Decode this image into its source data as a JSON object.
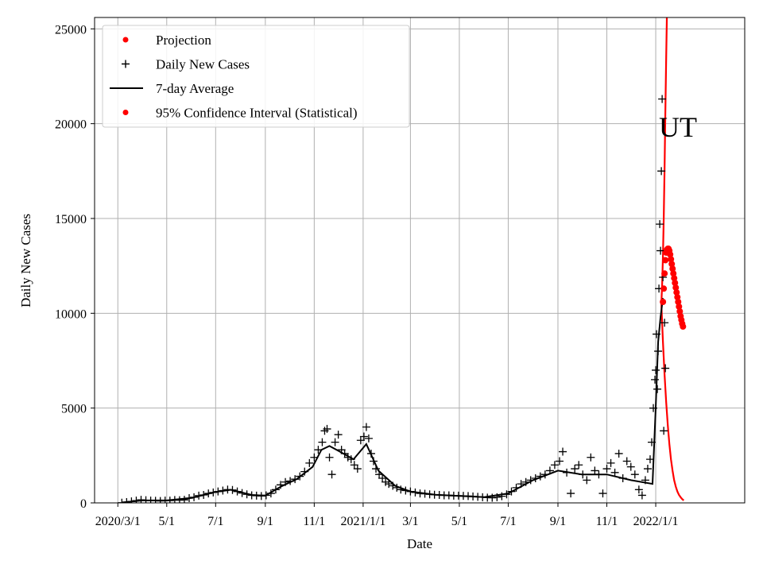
{
  "chart_data": {
    "type": "line",
    "title": "",
    "xlabel": "Date",
    "ylabel": "Daily New Cases",
    "annotation": "UT",
    "grid": true,
    "legend_position": "top-left",
    "xlim": [
      "2020-02-01",
      "2022-04-22"
    ],
    "ylim": [
      0,
      25600
    ],
    "x_ticks": [
      {
        "date": "2020-03-01",
        "label": "2020/3/1"
      },
      {
        "date": "2020-05-01",
        "label": "5/1"
      },
      {
        "date": "2020-07-01",
        "label": "7/1"
      },
      {
        "date": "2020-09-01",
        "label": "9/1"
      },
      {
        "date": "2020-11-01",
        "label": "11/1"
      },
      {
        "date": "2021-01-01",
        "label": "2021/1/1"
      },
      {
        "date": "2021-03-01",
        "label": "3/1"
      },
      {
        "date": "2021-05-01",
        "label": "5/1"
      },
      {
        "date": "2021-07-01",
        "label": "7/1"
      },
      {
        "date": "2021-09-01",
        "label": "9/1"
      },
      {
        "date": "2021-11-01",
        "label": "11/1"
      },
      {
        "date": "2022-01-01",
        "label": "2022/1/1"
      }
    ],
    "y_ticks": [
      0,
      5000,
      10000,
      15000,
      20000,
      25000
    ],
    "colors": {
      "projection": "#ff0000",
      "ci": "#ff0000",
      "daily": "#000000",
      "average": "#000000"
    },
    "series": [
      {
        "name": "Projection",
        "type": "dots",
        "points": [
          [
            "2022-01-10",
            10600
          ],
          [
            "2022-01-11",
            11300
          ],
          [
            "2022-01-12",
            12100
          ],
          [
            "2022-01-13",
            12800
          ],
          [
            "2022-01-14",
            13200
          ],
          [
            "2022-01-15",
            13350
          ],
          [
            "2022-01-16",
            13400
          ],
          [
            "2022-01-17",
            13400
          ],
          [
            "2022-01-18",
            13300
          ],
          [
            "2022-01-19",
            13100
          ],
          [
            "2022-01-20",
            12850
          ],
          [
            "2022-01-21",
            12600
          ],
          [
            "2022-01-22",
            12350
          ],
          [
            "2022-01-23",
            12100
          ],
          [
            "2022-01-24",
            11850
          ],
          [
            "2022-01-25",
            11600
          ],
          [
            "2022-01-26",
            11350
          ],
          [
            "2022-01-27",
            11100
          ],
          [
            "2022-01-28",
            10850
          ],
          [
            "2022-01-29",
            10600
          ],
          [
            "2022-01-30",
            10350
          ],
          [
            "2022-01-31",
            10100
          ],
          [
            "2022-02-01",
            9850
          ],
          [
            "2022-02-02",
            9650
          ],
          [
            "2022-02-03",
            9450
          ],
          [
            "2022-02-04",
            9300
          ]
        ]
      },
      {
        "name": "Daily New Cases",
        "type": "plus",
        "points": [
          [
            "2020-03-06",
            10
          ],
          [
            "2020-03-12",
            40
          ],
          [
            "2020-03-18",
            80
          ],
          [
            "2020-03-24",
            120
          ],
          [
            "2020-03-30",
            160
          ],
          [
            "2020-04-05",
            140
          ],
          [
            "2020-04-11",
            120
          ],
          [
            "2020-04-17",
            110
          ],
          [
            "2020-04-23",
            100
          ],
          [
            "2020-04-29",
            120
          ],
          [
            "2020-05-05",
            120
          ],
          [
            "2020-05-11",
            150
          ],
          [
            "2020-05-17",
            140
          ],
          [
            "2020-05-23",
            160
          ],
          [
            "2020-05-29",
            250
          ],
          [
            "2020-06-04",
            300
          ],
          [
            "2020-06-10",
            380
          ],
          [
            "2020-06-16",
            420
          ],
          [
            "2020-06-22",
            500
          ],
          [
            "2020-06-28",
            550
          ],
          [
            "2020-07-04",
            600
          ],
          [
            "2020-07-10",
            650
          ],
          [
            "2020-07-16",
            700
          ],
          [
            "2020-07-22",
            680
          ],
          [
            "2020-07-28",
            600
          ],
          [
            "2020-08-03",
            520
          ],
          [
            "2020-08-09",
            450
          ],
          [
            "2020-08-15",
            400
          ],
          [
            "2020-08-21",
            380
          ],
          [
            "2020-08-27",
            360
          ],
          [
            "2020-09-02",
            400
          ],
          [
            "2020-09-08",
            500
          ],
          [
            "2020-09-14",
            700
          ],
          [
            "2020-09-20",
            950
          ],
          [
            "2020-09-26",
            1100
          ],
          [
            "2020-10-02",
            1150
          ],
          [
            "2020-10-08",
            1250
          ],
          [
            "2020-10-14",
            1400
          ],
          [
            "2020-10-20",
            1650
          ],
          [
            "2020-10-26",
            2100
          ],
          [
            "2020-11-01",
            2400
          ],
          [
            "2020-11-06",
            2800
          ],
          [
            "2020-11-11",
            3200
          ],
          [
            "2020-11-14",
            3800
          ],
          [
            "2020-11-17",
            3900
          ],
          [
            "2020-11-20",
            2400
          ],
          [
            "2020-11-23",
            1500
          ],
          [
            "2020-11-27",
            3200
          ],
          [
            "2020-12-01",
            3600
          ],
          [
            "2020-12-05",
            2800
          ],
          [
            "2020-12-09",
            2600
          ],
          [
            "2020-12-13",
            2400
          ],
          [
            "2020-12-17",
            2300
          ],
          [
            "2020-12-21",
            2000
          ],
          [
            "2020-12-25",
            1800
          ],
          [
            "2020-12-29",
            3300
          ],
          [
            "2021-01-02",
            3500
          ],
          [
            "2021-01-05",
            4000
          ],
          [
            "2021-01-08",
            3400
          ],
          [
            "2021-01-11",
            2600
          ],
          [
            "2021-01-14",
            2200
          ],
          [
            "2021-01-17",
            1800
          ],
          [
            "2021-01-21",
            1500
          ],
          [
            "2021-01-25",
            1300
          ],
          [
            "2021-01-29",
            1100
          ],
          [
            "2021-02-02",
            1000
          ],
          [
            "2021-02-07",
            900
          ],
          [
            "2021-02-12",
            800
          ],
          [
            "2021-02-17",
            700
          ],
          [
            "2021-02-23",
            650
          ],
          [
            "2021-03-01",
            600
          ],
          [
            "2021-03-07",
            550
          ],
          [
            "2021-03-13",
            500
          ],
          [
            "2021-03-19",
            480
          ],
          [
            "2021-03-25",
            450
          ],
          [
            "2021-03-31",
            430
          ],
          [
            "2021-04-06",
            420
          ],
          [
            "2021-04-12",
            400
          ],
          [
            "2021-04-18",
            400
          ],
          [
            "2021-04-24",
            380
          ],
          [
            "2021-04-30",
            380
          ],
          [
            "2021-05-06",
            370
          ],
          [
            "2021-05-12",
            360
          ],
          [
            "2021-05-18",
            340
          ],
          [
            "2021-05-24",
            320
          ],
          [
            "2021-05-30",
            300
          ],
          [
            "2021-06-05",
            280
          ],
          [
            "2021-06-11",
            270
          ],
          [
            "2021-06-17",
            300
          ],
          [
            "2021-06-23",
            350
          ],
          [
            "2021-06-29",
            450
          ],
          [
            "2021-07-05",
            600
          ],
          [
            "2021-07-11",
            800
          ],
          [
            "2021-07-17",
            1000
          ],
          [
            "2021-07-23",
            1100
          ],
          [
            "2021-07-29",
            1200
          ],
          [
            "2021-08-04",
            1300
          ],
          [
            "2021-08-10",
            1400
          ],
          [
            "2021-08-16",
            1500
          ],
          [
            "2021-08-22",
            1700
          ],
          [
            "2021-08-28",
            2000
          ],
          [
            "2021-09-03",
            2200
          ],
          [
            "2021-09-07",
            2700
          ],
          [
            "2021-09-12",
            1600
          ],
          [
            "2021-09-17",
            500
          ],
          [
            "2021-09-22",
            1800
          ],
          [
            "2021-09-27",
            2000
          ],
          [
            "2021-10-02",
            1500
          ],
          [
            "2021-10-07",
            1200
          ],
          [
            "2021-10-12",
            2400
          ],
          [
            "2021-10-17",
            1700
          ],
          [
            "2021-10-22",
            1500
          ],
          [
            "2021-10-27",
            500
          ],
          [
            "2021-11-01",
            1800
          ],
          [
            "2021-11-06",
            2100
          ],
          [
            "2021-11-11",
            1600
          ],
          [
            "2021-11-16",
            2600
          ],
          [
            "2021-11-21",
            1300
          ],
          [
            "2021-11-26",
            2200
          ],
          [
            "2021-12-01",
            1900
          ],
          [
            "2021-12-06",
            1500
          ],
          [
            "2021-12-11",
            700
          ],
          [
            "2021-12-15",
            400
          ],
          [
            "2021-12-19",
            1200
          ],
          [
            "2021-12-22",
            1800
          ],
          [
            "2021-12-25",
            2300
          ],
          [
            "2021-12-27",
            3200
          ],
          [
            "2021-12-29",
            5000
          ],
          [
            "2021-12-31",
            6500
          ],
          [
            "2022-01-01",
            7000
          ],
          [
            "2022-01-02",
            8900
          ],
          [
            "2022-01-03",
            6000
          ],
          [
            "2022-01-04",
            8000
          ],
          [
            "2022-01-05",
            11300
          ],
          [
            "2022-01-06",
            14700
          ],
          [
            "2022-01-07",
            13300
          ],
          [
            "2022-01-08",
            17500
          ],
          [
            "2022-01-09",
            21300
          ],
          [
            "2022-01-10",
            11900
          ],
          [
            "2022-01-11",
            3800
          ],
          [
            "2022-01-12",
            9500
          ],
          [
            "2022-01-13",
            7100
          ]
        ]
      },
      {
        "name": "7-day Average",
        "type": "line",
        "points": [
          [
            "2020-03-06",
            20
          ],
          [
            "2020-04-01",
            130
          ],
          [
            "2020-05-01",
            130
          ],
          [
            "2020-06-01",
            260
          ],
          [
            "2020-07-01",
            580
          ],
          [
            "2020-07-20",
            690
          ],
          [
            "2020-08-15",
            420
          ],
          [
            "2020-09-01",
            380
          ],
          [
            "2020-09-20",
            850
          ],
          [
            "2020-10-10",
            1250
          ],
          [
            "2020-10-30",
            1900
          ],
          [
            "2020-11-10",
            2800
          ],
          [
            "2020-11-20",
            3000
          ],
          [
            "2020-12-01",
            2750
          ],
          [
            "2020-12-20",
            2300
          ],
          [
            "2021-01-05",
            3100
          ],
          [
            "2021-01-20",
            1700
          ],
          [
            "2021-02-10",
            900
          ],
          [
            "2021-03-01",
            600
          ],
          [
            "2021-04-01",
            430
          ],
          [
            "2021-05-01",
            370
          ],
          [
            "2021-06-01",
            300
          ],
          [
            "2021-07-01",
            500
          ],
          [
            "2021-08-01",
            1200
          ],
          [
            "2021-09-01",
            1700
          ],
          [
            "2021-10-01",
            1500
          ],
          [
            "2021-11-01",
            1500
          ],
          [
            "2021-12-01",
            1200
          ],
          [
            "2021-12-28",
            1000
          ],
          [
            "2022-01-01",
            5000
          ],
          [
            "2022-01-04",
            8500
          ],
          [
            "2022-01-07",
            9800
          ],
          [
            "2022-01-10",
            10800
          ]
        ]
      },
      {
        "name": "95% Confidence Interval (Statistical)",
        "type": "band",
        "upper": [
          [
            "2022-01-08",
            10500
          ],
          [
            "2022-01-09",
            11500
          ],
          [
            "2022-01-10",
            13000
          ],
          [
            "2022-01-11",
            15000
          ],
          [
            "2022-01-12",
            17500
          ],
          [
            "2022-01-13",
            20500
          ],
          [
            "2022-01-14",
            23500
          ],
          [
            "2022-01-15",
            26000
          ]
        ],
        "lower": [
          [
            "2022-01-08",
            10500
          ],
          [
            "2022-01-10",
            8500
          ],
          [
            "2022-01-12",
            6800
          ],
          [
            "2022-01-14",
            5300
          ],
          [
            "2022-01-16",
            4100
          ],
          [
            "2022-01-18",
            3100
          ],
          [
            "2022-01-20",
            2300
          ],
          [
            "2022-01-22",
            1700
          ],
          [
            "2022-01-24",
            1200
          ],
          [
            "2022-01-26",
            850
          ],
          [
            "2022-01-28",
            600
          ],
          [
            "2022-01-30",
            420
          ],
          [
            "2022-02-01",
            300
          ],
          [
            "2022-02-03",
            200
          ],
          [
            "2022-02-05",
            130
          ]
        ]
      }
    ]
  }
}
